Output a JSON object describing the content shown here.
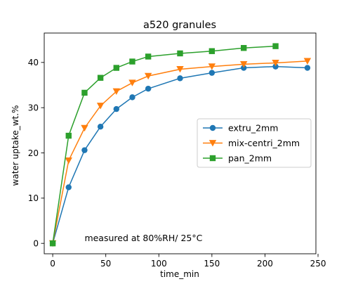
{
  "chart_data": {
    "type": "line",
    "title": "a520 granules",
    "xlabel": "time_min",
    "ylabel": "water uptake_wt.%",
    "xlim": [
      -8,
      248
    ],
    "ylim": [
      -2.3,
      46.5
    ],
    "xticks": [
      0,
      50,
      100,
      150,
      200,
      250
    ],
    "yticks": [
      0,
      10,
      20,
      30,
      40
    ],
    "grid": false,
    "legend_position": "center-right",
    "annotation": {
      "text": "measured at 80%RH/ 25°C",
      "x": 30,
      "y": 0.5
    },
    "series": [
      {
        "name": "extru_2mm",
        "marker": "circle",
        "color": "#1f77b4",
        "x": [
          0,
          15,
          30,
          45,
          60,
          75,
          90,
          120,
          150,
          180,
          210,
          240
        ],
        "y": [
          0,
          12.4,
          20.6,
          25.8,
          29.7,
          32.3,
          34.2,
          36.5,
          37.7,
          38.8,
          39.1,
          38.8
        ]
      },
      {
        "name": "mix-centri_2mm",
        "marker": "triangle-down",
        "color": "#ff7f0e",
        "x": [
          0,
          15,
          30,
          45,
          60,
          75,
          90,
          120,
          150,
          180,
          210,
          240
        ],
        "y": [
          0,
          18.3,
          25.5,
          30.4,
          33.6,
          35.5,
          37.0,
          38.5,
          39.1,
          39.6,
          39.9,
          40.3
        ]
      },
      {
        "name": "pan_2mm",
        "marker": "square",
        "color": "#2ca02c",
        "x": [
          0,
          15,
          30,
          45,
          60,
          75,
          90,
          120,
          150,
          180,
          210
        ],
        "y": [
          0,
          23.8,
          33.3,
          36.6,
          38.8,
          40.2,
          41.3,
          42.0,
          42.5,
          43.2,
          43.6
        ]
      }
    ]
  }
}
